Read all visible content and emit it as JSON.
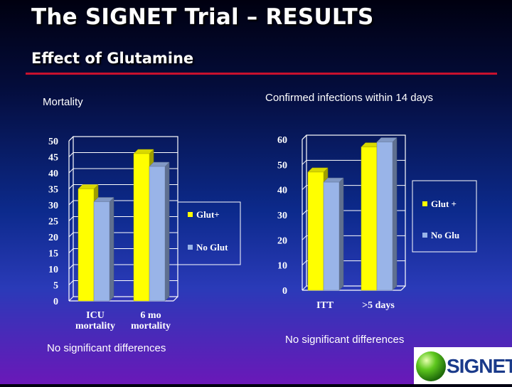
{
  "slide": {
    "title": "The SIGNET Trial – RESULTS",
    "subtitle": "Effect of Glutamine",
    "logo_text": "SIGNET"
  },
  "colors": {
    "glut_plus": "#ffff00",
    "no_glut": "#99b4e8",
    "accent_rule": "#c8102e"
  },
  "chart_data": [
    {
      "type": "bar",
      "title": "Mortality",
      "categories": [
        "ICU mortality",
        "6 mo mortality"
      ],
      "category_lines": [
        [
          "ICU",
          "mortality"
        ],
        [
          "6 mo",
          "mortality"
        ]
      ],
      "series": [
        {
          "name": "Glut+",
          "values": [
            35,
            46
          ]
        },
        {
          "name": "No Glut",
          "values": [
            31,
            42
          ]
        }
      ],
      "ylim": [
        0,
        50
      ],
      "yticks": [
        "0",
        "5",
        "10",
        "15",
        "20",
        "25",
        "30",
        "35",
        "40",
        "45",
        "50"
      ],
      "grid": true,
      "legend": "right",
      "note": "No significant differences"
    },
    {
      "type": "bar",
      "title": "Confirmed infections within 14 days",
      "categories": [
        "ITT",
        ">5 days"
      ],
      "category_lines": [
        [
          "ITT"
        ],
        [
          ">5 days"
        ]
      ],
      "series": [
        {
          "name": "Glut +",
          "values": [
            47,
            57
          ]
        },
        {
          "name": "No Glu",
          "values": [
            43,
            59
          ]
        }
      ],
      "ylim": [
        0,
        60
      ],
      "yticks": [
        "0",
        "10",
        "20",
        "30",
        "40",
        "50",
        "60"
      ],
      "grid": true,
      "legend": "right",
      "note": "No significant differences"
    }
  ]
}
